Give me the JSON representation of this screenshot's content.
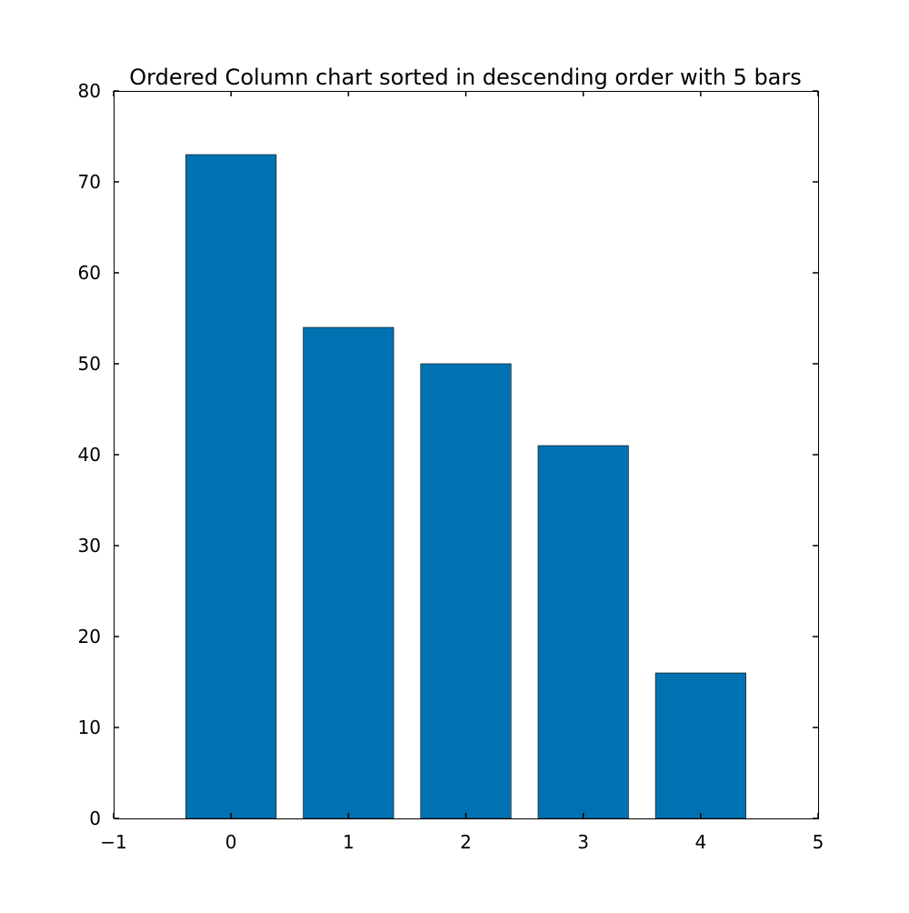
{
  "chart_data": {
    "type": "bar",
    "title": "Ordered Column chart sorted in descending order with 5 bars",
    "xlabel": "",
    "ylabel": "",
    "x": [
      0,
      1,
      2,
      3,
      4
    ],
    "values": [
      73,
      54,
      50,
      41,
      16
    ],
    "bar_width": 0.77,
    "xlim": [
      -1,
      5
    ],
    "ylim": [
      0,
      80
    ],
    "xticks": [
      "−1",
      "0",
      "1",
      "2",
      "3",
      "4",
      "5"
    ],
    "yticks": [
      "0",
      "10",
      "20",
      "30",
      "40",
      "50",
      "60",
      "70",
      "80"
    ],
    "grid": false,
    "legend": "none",
    "bar_color": "#0072b2",
    "edge_color": "#000000"
  }
}
